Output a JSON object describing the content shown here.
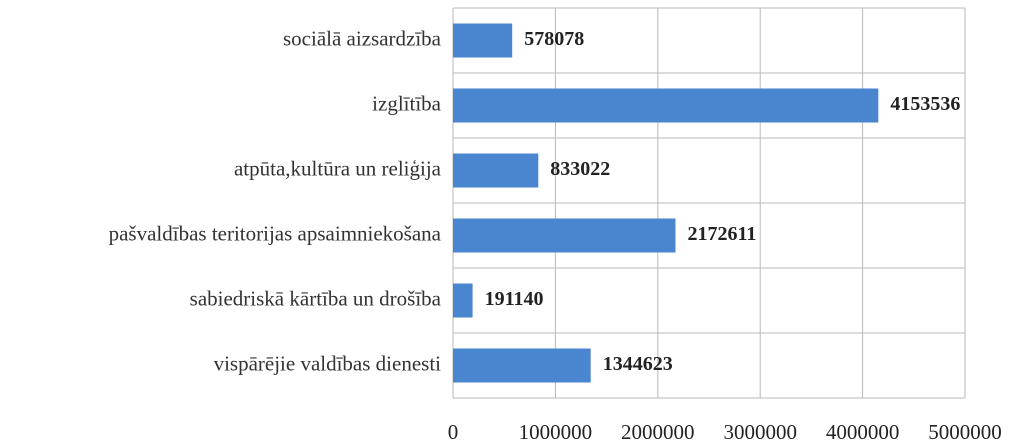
{
  "chart_data": {
    "type": "hbar",
    "categories": [
      "sociālā aizsardzība",
      "izglītība",
      "atpūta,kultūra un reliģija",
      "pašvaldības teritorijas apsaimniekošana",
      "sabiedriskā kārtība un drošība",
      "vispārējie valdības dienesti"
    ],
    "values": [
      578078,
      4153536,
      833022,
      2172611,
      191140,
      1344623
    ],
    "color": "#4a86cf",
    "xlim": [
      0,
      5000000
    ],
    "xticks": [
      0,
      1000000,
      2000000,
      3000000,
      4000000,
      5000000
    ],
    "grid": true
  }
}
